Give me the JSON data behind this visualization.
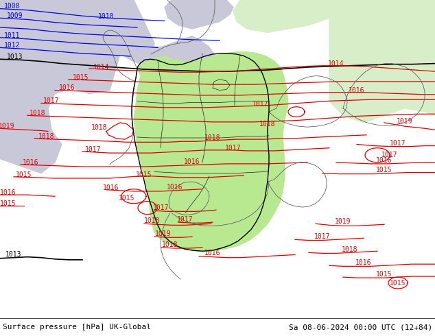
{
  "title_left": "Surface pressure [hPa] UK-Global",
  "title_right": "Sa 08-06-2024 00:00 UTC (12+84)",
  "figsize": [
    6.34,
    4.9
  ],
  "dpi": 100,
  "bg_land_green": "#c8f0a0",
  "bg_land_green2": "#b8e890",
  "bg_ocean_gray": "#c8c8d8",
  "bg_land_pale": "#d8eec8",
  "border_color": "#404040",
  "border_lw": 0.7,
  "blue_color": "#0000ee",
  "black_color": "#000000",
  "red_color": "#dd0000",
  "contour_lw": 0.9,
  "label_fontsize": 7,
  "title_fontsize": 8
}
